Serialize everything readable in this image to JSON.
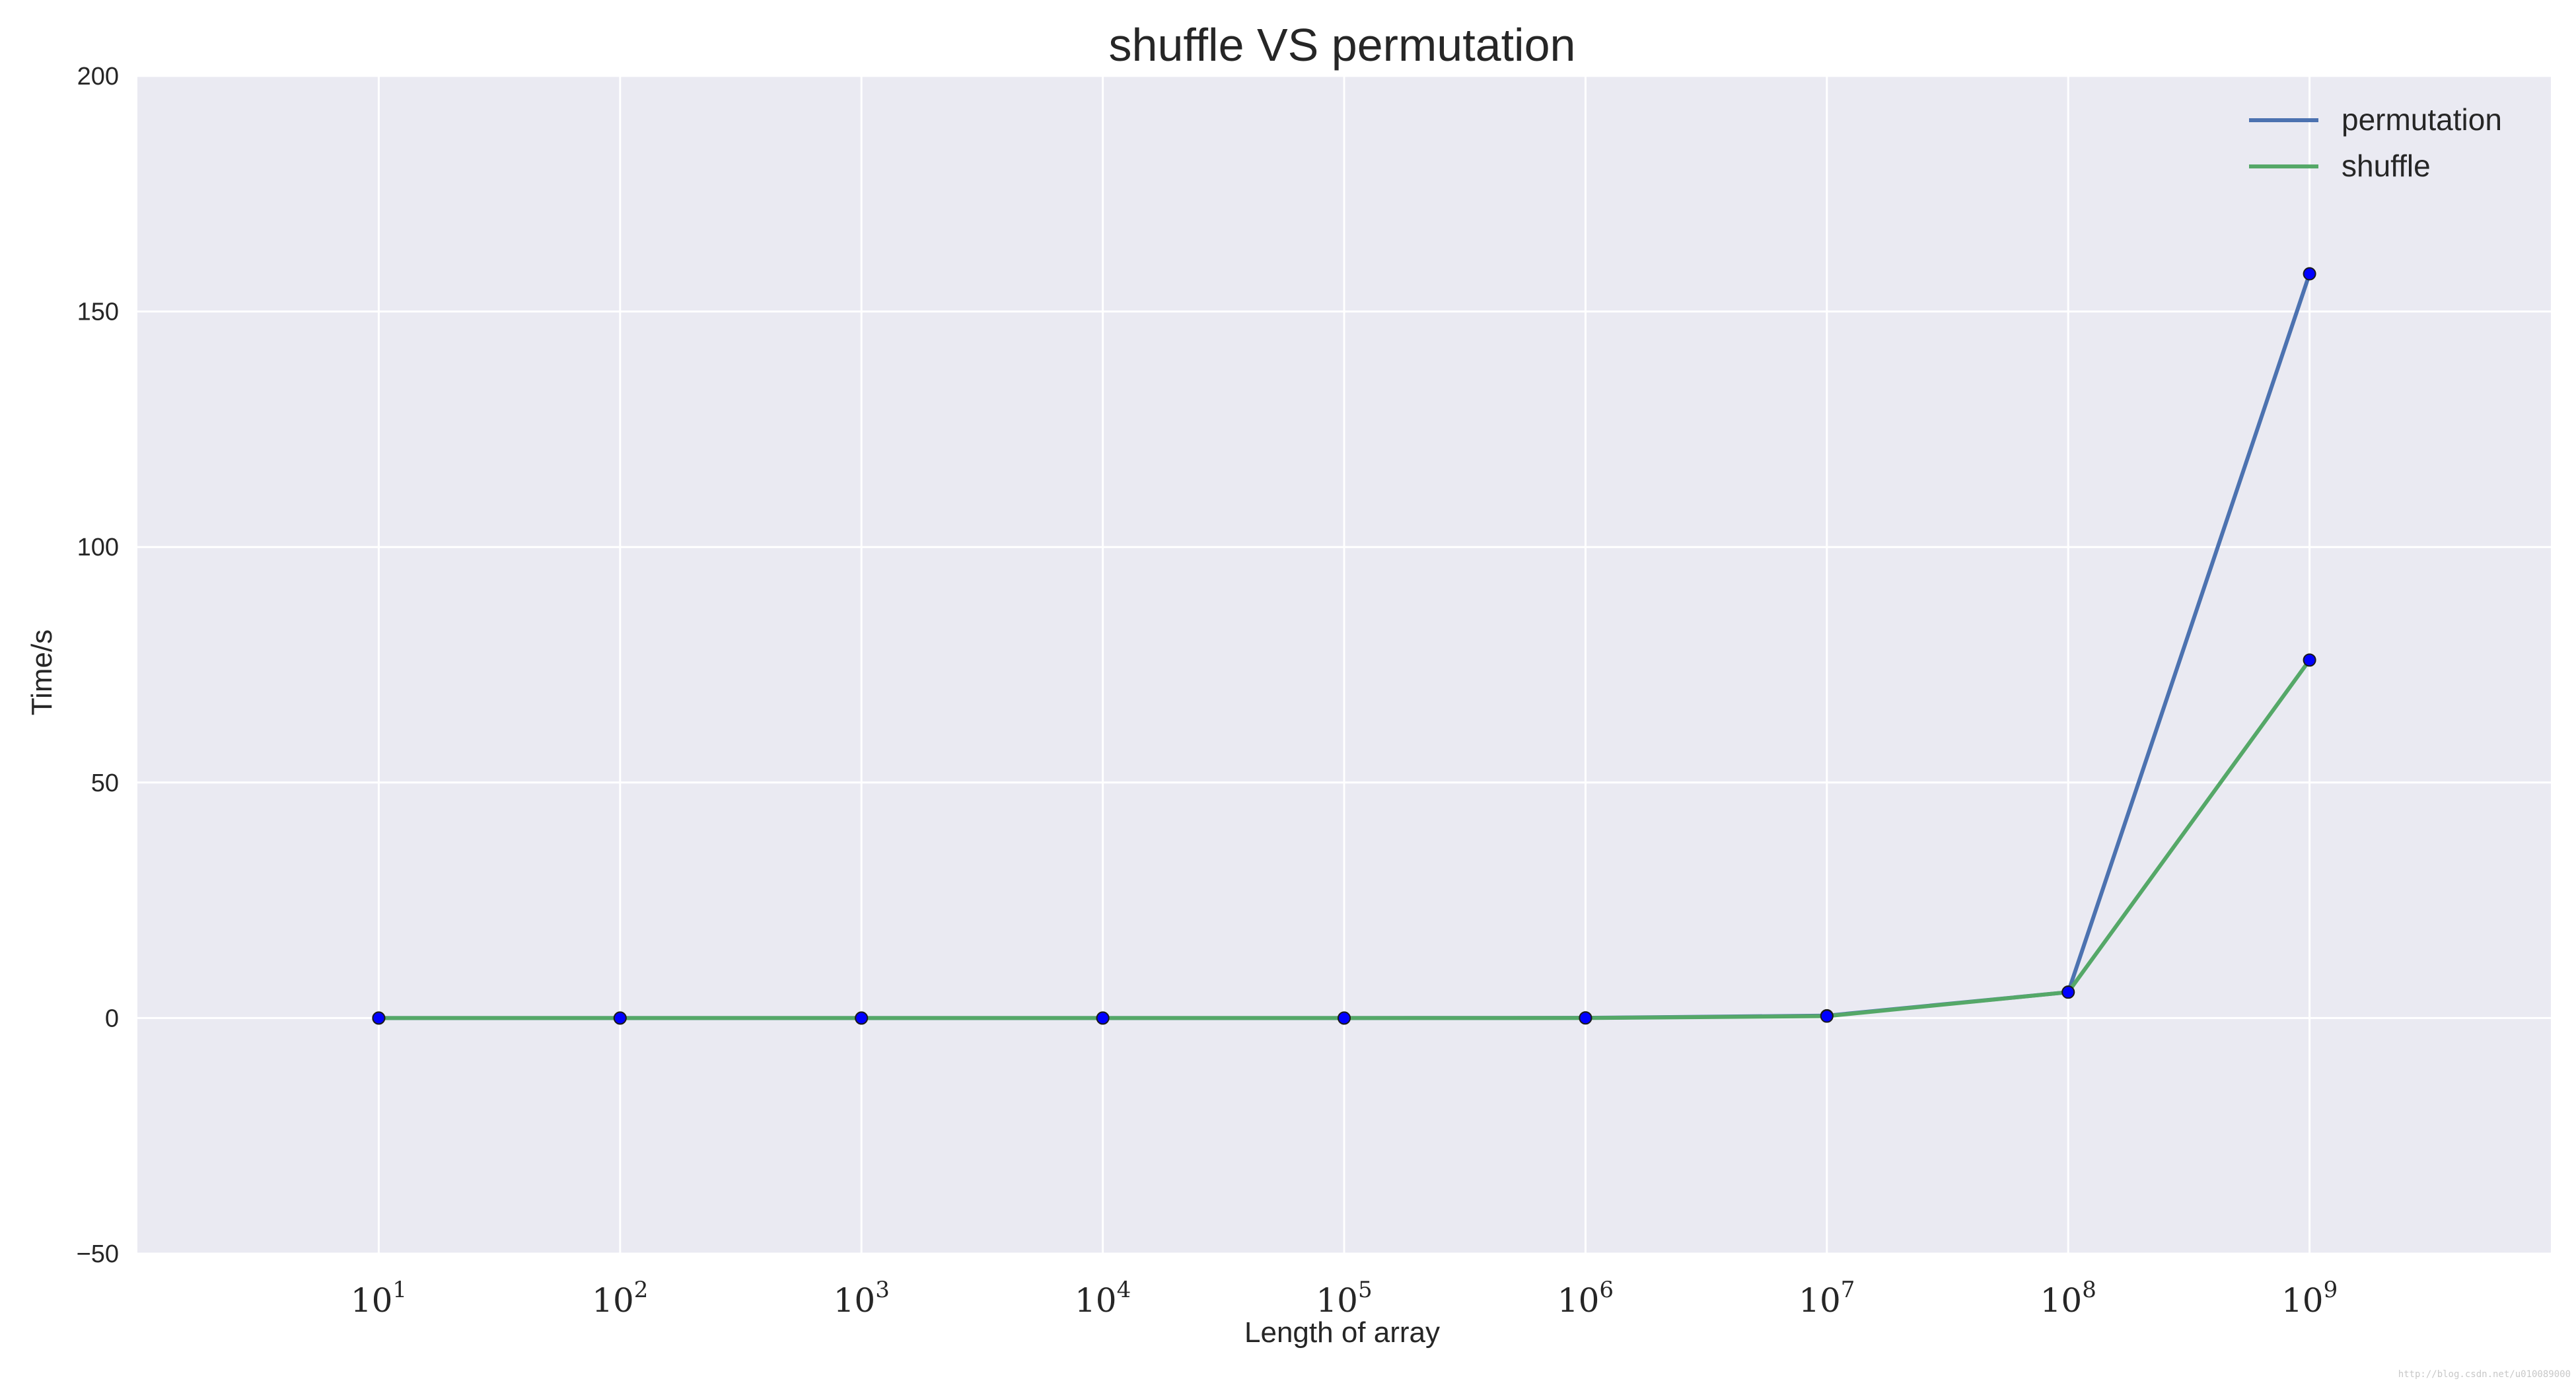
{
  "chart_data": {
    "type": "line",
    "title": "shuffle VS permutation",
    "xlabel": "Length of array",
    "ylabel": "Time/s",
    "xscale": "log",
    "x": [
      10,
      100,
      1000,
      10000,
      100000,
      1000000,
      10000000,
      100000000,
      1000000000
    ],
    "x_tick_labels": [
      {
        "base": "10",
        "exp": "1"
      },
      {
        "base": "10",
        "exp": "2"
      },
      {
        "base": "10",
        "exp": "3"
      },
      {
        "base": "10",
        "exp": "4"
      },
      {
        "base": "10",
        "exp": "5"
      },
      {
        "base": "10",
        "exp": "6"
      },
      {
        "base": "10",
        "exp": "7"
      },
      {
        "base": "10",
        "exp": "8"
      },
      {
        "base": "10",
        "exp": "9"
      }
    ],
    "y_ticks": [
      -50,
      0,
      50,
      100,
      150,
      200
    ],
    "y_tick_labels": [
      "−50",
      "0",
      "50",
      "100",
      "150",
      "200"
    ],
    "ylim": [
      -50,
      200
    ],
    "xlim_log10": [
      0,
      10
    ],
    "grid": true,
    "legend_position": "top-right",
    "series": [
      {
        "name": "permutation",
        "color": "#4c72b0",
        "values": [
          0.0,
          0.0,
          0.0,
          0.0,
          0.0,
          0.04,
          0.5,
          5.5,
          158
        ]
      },
      {
        "name": "shuffle",
        "color": "#55a868",
        "values": [
          0.0,
          0.0,
          0.0,
          0.0,
          0.0,
          0.02,
          0.4,
          5.5,
          76
        ]
      }
    ],
    "marker_color": "#0000ff",
    "background_color": "#eaeaf2",
    "grid_color": "#ffffff"
  },
  "watermark": "http://blog.csdn.net/u010089000"
}
